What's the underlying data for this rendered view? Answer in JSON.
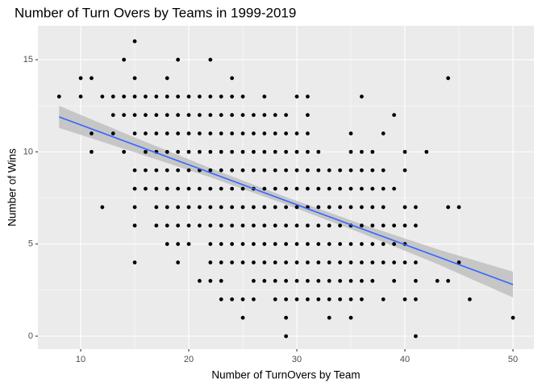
{
  "chart_data": {
    "type": "scatter",
    "title": "Number of Turn Overs by Teams in 1999-2019",
    "x_label": "Number of TurnOvers by Team",
    "y_label": "Number of Wins",
    "xlim": [
      6.04,
      51.94
    ],
    "ylim": [
      -0.7,
      16.84
    ],
    "xticks": [
      10,
      20,
      30,
      40,
      50
    ],
    "yticks": [
      0,
      5,
      10,
      15
    ],
    "xminor": [
      15,
      25,
      35,
      45
    ],
    "yminor": [
      2.5,
      7.5,
      12.5
    ],
    "grid": true,
    "color": "#000000",
    "x": [
      15,
      14,
      19,
      22,
      10,
      11,
      15,
      18,
      24,
      44,
      8,
      10,
      12,
      13,
      14,
      15,
      16,
      17,
      18,
      19,
      20,
      21,
      22,
      23,
      24,
      25,
      27,
      30,
      31,
      36,
      13,
      14,
      15,
      16,
      17,
      18,
      19,
      20,
      21,
      22,
      23,
      24,
      25,
      26,
      27,
      28,
      29,
      31,
      39,
      11,
      13,
      15,
      16,
      17,
      18,
      19,
      20,
      21,
      22,
      23,
      24,
      25,
      26,
      27,
      28,
      29,
      30,
      31,
      35,
      38,
      11,
      14,
      16,
      17,
      18,
      19,
      20,
      21,
      22,
      23,
      24,
      25,
      26,
      27,
      28,
      29,
      30,
      31,
      32,
      35,
      36,
      37,
      40,
      42,
      15,
      16,
      17,
      18,
      19,
      20,
      21,
      22,
      23,
      24,
      25,
      26,
      27,
      28,
      29,
      30,
      31,
      32,
      33,
      34,
      35,
      36,
      37,
      38,
      40,
      15,
      16,
      17,
      18,
      19,
      20,
      21,
      22,
      23,
      24,
      25,
      26,
      27,
      28,
      29,
      30,
      31,
      32,
      33,
      34,
      35,
      36,
      37,
      38,
      39,
      12,
      15,
      17,
      18,
      19,
      20,
      21,
      22,
      23,
      24,
      25,
      26,
      27,
      28,
      29,
      30,
      31,
      32,
      33,
      34,
      35,
      36,
      37,
      38,
      40,
      41,
      44,
      45,
      15,
      17,
      18,
      19,
      20,
      21,
      22,
      23,
      24,
      25,
      26,
      27,
      28,
      29,
      30,
      31,
      32,
      33,
      34,
      35,
      36,
      37,
      38,
      39,
      40,
      41,
      18,
      19,
      20,
      22,
      23,
      24,
      25,
      26,
      27,
      28,
      29,
      30,
      31,
      32,
      33,
      34,
      35,
      36,
      37,
      38,
      39,
      40,
      15,
      19,
      22,
      23,
      24,
      25,
      26,
      27,
      28,
      29,
      30,
      31,
      32,
      33,
      34,
      35,
      36,
      37,
      38,
      39,
      40,
      41,
      45,
      21,
      22,
      23,
      26,
      27,
      28,
      29,
      30,
      31,
      32,
      33,
      34,
      35,
      36,
      37,
      39,
      41,
      43,
      44,
      23,
      24,
      25,
      26,
      28,
      29,
      30,
      31,
      32,
      33,
      34,
      35,
      36,
      38,
      40,
      41,
      46,
      25,
      29,
      33,
      35,
      50,
      29,
      41
    ],
    "values": [
      16,
      15,
      15,
      15,
      14,
      14,
      14,
      14,
      14,
      14,
      13,
      13,
      13,
      13,
      13,
      13,
      13,
      13,
      13,
      13,
      13,
      13,
      13,
      13,
      13,
      13,
      13,
      13,
      13,
      13,
      12,
      12,
      12,
      12,
      12,
      12,
      12,
      12,
      12,
      12,
      12,
      12,
      12,
      12,
      12,
      12,
      12,
      12,
      12,
      11,
      11,
      11,
      11,
      11,
      11,
      11,
      11,
      11,
      11,
      11,
      11,
      11,
      11,
      11,
      11,
      11,
      11,
      11,
      11,
      11,
      10,
      10,
      10,
      10,
      10,
      10,
      10,
      10,
      10,
      10,
      10,
      10,
      10,
      10,
      10,
      10,
      10,
      10,
      10,
      10,
      10,
      10,
      10,
      10,
      9,
      9,
      9,
      9,
      9,
      9,
      9,
      9,
      9,
      9,
      9,
      9,
      9,
      9,
      9,
      9,
      9,
      9,
      9,
      9,
      9,
      9,
      9,
      9,
      9,
      8,
      8,
      8,
      8,
      8,
      8,
      8,
      8,
      8,
      8,
      8,
      8,
      8,
      8,
      8,
      8,
      8,
      8,
      8,
      8,
      8,
      8,
      8,
      8,
      8,
      7,
      7,
      7,
      7,
      7,
      7,
      7,
      7,
      7,
      7,
      7,
      7,
      7,
      7,
      7,
      7,
      7,
      7,
      7,
      7,
      7,
      7,
      7,
      7,
      7,
      7,
      7,
      7,
      6,
      6,
      6,
      6,
      6,
      6,
      6,
      6,
      6,
      6,
      6,
      6,
      6,
      6,
      6,
      6,
      6,
      6,
      6,
      6,
      6,
      6,
      6,
      6,
      6,
      6,
      5,
      5,
      5,
      5,
      5,
      5,
      5,
      5,
      5,
      5,
      5,
      5,
      5,
      5,
      5,
      5,
      5,
      5,
      5,
      5,
      5,
      5,
      4,
      4,
      4,
      4,
      4,
      4,
      4,
      4,
      4,
      4,
      4,
      4,
      4,
      4,
      4,
      4,
      4,
      4,
      4,
      4,
      4,
      4,
      4,
      3,
      3,
      3,
      3,
      3,
      3,
      3,
      3,
      3,
      3,
      3,
      3,
      3,
      3,
      3,
      3,
      3,
      3,
      3,
      2,
      2,
      2,
      2,
      2,
      2,
      2,
      2,
      2,
      2,
      2,
      2,
      2,
      2,
      2,
      2,
      2,
      1,
      1,
      1,
      1,
      1,
      0,
      0
    ],
    "fit": {
      "color": "#3366ff",
      "band_color": "#bdbdbd",
      "x": [
        8,
        15,
        22,
        29,
        36,
        43,
        50
      ],
      "y": [
        11.9,
        10.38,
        8.87,
        7.35,
        5.83,
        4.32,
        2.8
      ],
      "lower": [
        11.3,
        9.98,
        8.62,
        7.15,
        5.58,
        3.92,
        2.1
      ],
      "upper": [
        12.5,
        10.78,
        9.12,
        7.55,
        6.08,
        4.72,
        3.5
      ]
    }
  }
}
